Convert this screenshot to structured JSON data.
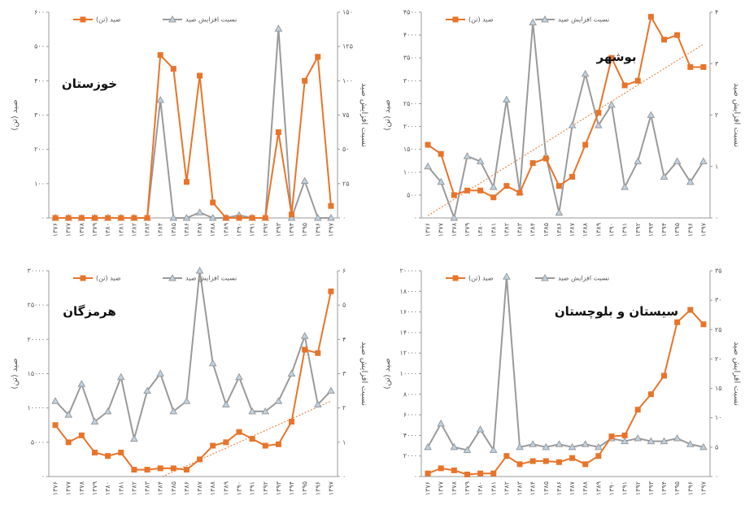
{
  "chart_data": [
    {
      "type": "line",
      "title": "خوزستان",
      "y_label": "صید (تن)",
      "y2_label": "نسبت افزایش صید",
      "categories": [
        "۱۳۷۶",
        "۱۳۷۷",
        "۱۳۷۸",
        "۱۳۷۹",
        "۱۳۸۰",
        "۱۳۸۱",
        "۱۳۸۲",
        "۱۳۸۳",
        "۱۳۸۴",
        "۱۳۸۵",
        "۱۳۸۶",
        "۱۳۸۷",
        "۱۳۸۸",
        "۱۳۸۹",
        "۱۳۹۰",
        "۱۳۹۱",
        "۱۳۹۲",
        "۱۳۹۳",
        "۱۳۹۴",
        "۱۳۹۵",
        "۱۳۹۶",
        "۱۳۹۷"
      ],
      "series": [
        {
          "name": "صید (تن)",
          "color": "#e8742a",
          "marker": "square",
          "values": [
            0,
            0,
            0,
            0,
            0,
            0,
            0,
            0,
            475,
            435,
            105,
            415,
            45,
            0,
            0,
            0,
            0,
            250,
            10,
            400,
            470,
            35
          ]
        },
        {
          "name": "نسبت افزایش صید",
          "color": "#9a9a9a",
          "marker": "triangle",
          "axis": "y2",
          "values": [
            0,
            0,
            0,
            0,
            0,
            0,
            0,
            0,
            86,
            0,
            0,
            4,
            0,
            0,
            2,
            0,
            0,
            138,
            0,
            27,
            0,
            0
          ]
        }
      ],
      "ylim": [
        0,
        600
      ],
      "yticks": [
        {
          "value": 0,
          "label": "۰"
        },
        {
          "value": 100,
          "label": "۱۰۰"
        },
        {
          "value": 200,
          "label": "۲۰۰"
        },
        {
          "value": 300,
          "label": "۳۰۰"
        },
        {
          "value": 400,
          "label": "۴۰۰"
        },
        {
          "value": 500,
          "label": "۵۰۰"
        },
        {
          "value": 600,
          "label": "۶۰۰"
        }
      ],
      "y2lim": [
        0,
        150
      ],
      "y2ticks": [
        {
          "value": 0,
          "label": "۰"
        },
        {
          "value": 25,
          "label": "۲۵"
        },
        {
          "value": 50,
          "label": "۵۰"
        },
        {
          "value": 75,
          "label": "۷۵"
        },
        {
          "value": 100,
          "label": "۱۰۰"
        },
        {
          "value": 125,
          "label": "۱۲۵"
        },
        {
          "value": 150,
          "label": "۱۵۰"
        }
      ]
    },
    {
      "type": "line",
      "title": "بوشهر",
      "y_label": "صید (تن)",
      "y2_label": "نسبت افزایش صید",
      "categories": [
        "۱۳۷۶",
        "۱۳۷۷",
        "۱۳۷۸",
        "۱۳۷۹",
        "۱۳۸۰",
        "۱۳۸۱",
        "۱۳۸۲",
        "۱۳۸۳",
        "۱۳۸۴",
        "۱۳۸۵",
        "۱۳۸۶",
        "۱۳۸۷",
        "۱۳۸۸",
        "۱۳۸۹",
        "۱۳۹۰",
        "۱۳۹۱",
        "۱۳۹۲",
        "۱۳۹۳",
        "۱۳۹۴",
        "۱۳۹۵",
        "۱۳۹۶",
        "۱۳۹۷"
      ],
      "series": [
        {
          "name": "صید (تن)",
          "color": "#e8742a",
          "marker": "square",
          "values": [
            1600,
            1400,
            500,
            600,
            600,
            450,
            700,
            550,
            1200,
            1300,
            700,
            900,
            1600,
            2300,
            3500,
            2900,
            3000,
            4400,
            3900,
            4000,
            3300,
            3300
          ]
        },
        {
          "name": "نسبت افزایش صید",
          "color": "#9a9a9a",
          "marker": "triangle",
          "axis": "y2",
          "values": [
            1,
            0.7,
            0,
            1.2,
            1.1,
            0.6,
            2.3,
            0.5,
            3.8,
            1.2,
            0.1,
            1.8,
            2.8,
            1.8,
            2.2,
            0.6,
            1.1,
            2,
            0.8,
            1.1,
            0.7,
            1.1
          ]
        }
      ],
      "trend": [
        50,
        3800
      ],
      "trend_color": "#e8742a",
      "ylim": [
        0,
        4500
      ],
      "yticks": [
        {
          "value": 0,
          "label": "۰"
        },
        {
          "value": 500,
          "label": "۵۰۰"
        },
        {
          "value": 1000,
          "label": "۱۰۰۰"
        },
        {
          "value": 1500,
          "label": "۱۵۰۰"
        },
        {
          "value": 2000,
          "label": "۲۰۰۰"
        },
        {
          "value": 2500,
          "label": "۲۵۰۰"
        },
        {
          "value": 3000,
          "label": "۳۰۰۰"
        },
        {
          "value": 3500,
          "label": "۳۵۰۰"
        },
        {
          "value": 4000,
          "label": "۴۰۰۰"
        },
        {
          "value": 4500,
          "label": "۴۵۰۰"
        }
      ],
      "y2lim": [
        0,
        4
      ],
      "y2ticks": [
        {
          "value": 0,
          "label": "۰"
        },
        {
          "value": 1,
          "label": "۱"
        },
        {
          "value": 2,
          "label": "۲"
        },
        {
          "value": 3,
          "label": "۳"
        },
        {
          "value": 4,
          "label": "۴"
        }
      ]
    },
    {
      "type": "line",
      "title": "هرمزگان",
      "y_label": "صید (تن)",
      "y2_label": "نسبت افزایش صید",
      "categories": [
        "۱۳۷۶",
        "۱۳۷۷",
        "۱۳۷۸",
        "۱۳۷۹",
        "۱۳۸۰",
        "۱۳۸۱",
        "۱۳۸۲",
        "۱۳۸۳",
        "۱۳۸۴",
        "۱۳۸۵",
        "۱۳۸۶",
        "۱۳۸۷",
        "۱۳۸۸",
        "۱۳۸۹",
        "۱۳۹۰",
        "۱۳۹۱",
        "۱۳۹۲",
        "۱۳۹۳",
        "۱۳۹۴",
        "۱۳۹۵",
        "۱۳۹۶",
        "۱۳۹۷"
      ],
      "series": [
        {
          "name": "صید (تن)",
          "color": "#e8742a",
          "marker": "square",
          "values": [
            7500,
            5000,
            6000,
            3500,
            3000,
            3500,
            1000,
            1000,
            1200,
            1200,
            1000,
            2500,
            4500,
            5000,
            6500,
            5500,
            4500,
            4700,
            8000,
            18500,
            18000,
            27000
          ]
        },
        {
          "name": "نسبت افزایش صید",
          "color": "#9a9a9a",
          "marker": "triangle",
          "axis": "y2",
          "values": [
            2.2,
            1.8,
            2.7,
            1.6,
            1.9,
            2.9,
            1.1,
            2.5,
            3,
            1.9,
            2.2,
            6,
            3.3,
            2.1,
            2.9,
            1.9,
            1.9,
            2.2,
            3,
            4.1,
            2.1,
            2.5
          ]
        }
      ],
      "trend": [
        -7000,
        11000
      ],
      "trend_color": "#e8742a",
      "ylim": [
        0,
        30000
      ],
      "yticks": [
        {
          "value": 0,
          "label": "۰"
        },
        {
          "value": 5000,
          "label": "۵۰۰۰"
        },
        {
          "value": 10000,
          "label": "۱۰۰۰۰"
        },
        {
          "value": 15000,
          "label": "۱۵۰۰۰"
        },
        {
          "value": 20000,
          "label": "۲۰۰۰۰"
        },
        {
          "value": 25000,
          "label": "۲۵۰۰۰"
        },
        {
          "value": 30000,
          "label": "۳۰۰۰۰"
        }
      ],
      "y2lim": [
        0,
        6
      ],
      "y2ticks": [
        {
          "value": 0,
          "label": "۰"
        },
        {
          "value": 1,
          "label": "۱"
        },
        {
          "value": 2,
          "label": "۲"
        },
        {
          "value": 3,
          "label": "۳"
        },
        {
          "value": 4,
          "label": "۴"
        },
        {
          "value": 5,
          "label": "۵"
        },
        {
          "value": 6,
          "label": "۶"
        }
      ]
    },
    {
      "type": "line",
      "title": "سیستان و بلوچستان",
      "y_label": "صید (تن)",
      "y2_label": "نسبت افزایش صید",
      "categories": [
        "۱۳۷۶",
        "۱۳۷۷",
        "۱۳۷۸",
        "۱۳۷۹",
        "۱۳۸۰",
        "۱۳۸۱",
        "۱۳۸۲",
        "۱۳۸۳",
        "۱۳۸۴",
        "۱۳۸۵",
        "۱۳۸۶",
        "۱۳۸۷",
        "۱۳۸۸",
        "۱۳۸۹",
        "۱۳۹۰",
        "۱۳۹۱",
        "۱۳۹۲",
        "۱۳۹۳",
        "۱۳۹۴",
        "۱۳۹۵",
        "۱۳۹۶",
        "۱۳۹۷"
      ],
      "series": [
        {
          "name": "صید (تن)",
          "color": "#e8742a",
          "marker": "square",
          "values": [
            300,
            800,
            600,
            200,
            300,
            300,
            2000,
            1200,
            1500,
            1500,
            1400,
            1800,
            1200,
            2000,
            3900,
            4000,
            6500,
            8000,
            9800,
            15000,
            16200,
            14800
          ]
        },
        {
          "name": "نسبت افزایش صید",
          "color": "#9a9a9a",
          "marker": "triangle",
          "axis": "y2",
          "values": [
            5,
            9,
            5,
            4.5,
            8,
            4.5,
            34,
            5,
            5.5,
            5,
            5.5,
            5,
            5.5,
            5,
            6.5,
            6,
            6.5,
            6,
            6,
            6.5,
            5.5,
            5
          ]
        }
      ],
      "ylim": [
        0,
        20000
      ],
      "yticks": [
        {
          "value": 0,
          "label": "۰"
        },
        {
          "value": 2000,
          "label": "۲۰۰۰"
        },
        {
          "value": 4000,
          "label": "۴۰۰۰"
        },
        {
          "value": 6000,
          "label": "۶۰۰۰"
        },
        {
          "value": 8000,
          "label": "۸۰۰۰"
        },
        {
          "value": 10000,
          "label": "۱۰۰۰۰"
        },
        {
          "value": 12000,
          "label": "۱۲۰۰۰"
        },
        {
          "value": 14000,
          "label": "۱۴۰۰۰"
        },
        {
          "value": 16000,
          "label": "۱۶۰۰۰"
        },
        {
          "value": 18000,
          "label": "۱۸۰۰۰"
        },
        {
          "value": 20000,
          "label": "۲۰۰۰۰"
        }
      ],
      "y2lim": [
        0,
        35
      ],
      "y2ticks": [
        {
          "value": 0,
          "label": "۰"
        },
        {
          "value": 5,
          "label": "۵"
        },
        {
          "value": 10,
          "label": "۱۰"
        },
        {
          "value": 15,
          "label": "۱۵"
        },
        {
          "value": 20,
          "label": "۲۰"
        },
        {
          "value": 25,
          "label": "۲۵"
        },
        {
          "value": 30,
          "label": "۳۰"
        },
        {
          "value": 35,
          "label": "۳۵"
        }
      ]
    }
  ]
}
